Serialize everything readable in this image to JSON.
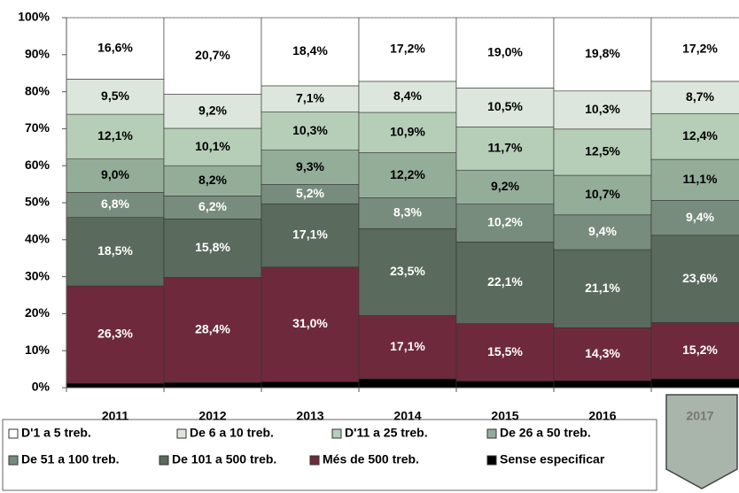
{
  "chart_data": {
    "type": "stacked_bar",
    "categories": [
      "2011",
      "2012",
      "2013",
      "2014",
      "2015",
      "2016",
      "2017"
    ],
    "series": [
      {
        "name": "Sense especificar",
        "color": "#000000",
        "values": [
          1.2,
          1.4,
          1.6,
          2.4,
          1.8,
          1.9,
          2.4
        ]
      },
      {
        "name": "Més de 500 treb.",
        "color": "#6e2a3c",
        "values": [
          26.3,
          28.4,
          31.0,
          17.1,
          15.5,
          14.3,
          15.2
        ],
        "value_labels": [
          "26,3%",
          "28,4%",
          "31,0%",
          "17,1%",
          "15,5%",
          "14,3%",
          "15,2%"
        ]
      },
      {
        "name": "De 101 a 500 treb.",
        "color": "#5a6a5d",
        "values": [
          18.5,
          15.8,
          17.1,
          23.5,
          22.1,
          21.1,
          23.6
        ],
        "value_labels": [
          "18,5%",
          "15,8%",
          "17,1%",
          "23,5%",
          "22,1%",
          "21,1%",
          "23,6%"
        ]
      },
      {
        "name": "De 51 a 100 treb.",
        "color": "#788c7d",
        "values": [
          6.8,
          6.2,
          5.2,
          8.3,
          10.2,
          9.4,
          9.4
        ],
        "value_labels": [
          "6,8%",
          "6,2%",
          "5,2%",
          "8,3%",
          "10,2%",
          "9,4%",
          "9,4%"
        ]
      },
      {
        "name": "De 26 a 50 treb.",
        "color": "#94ad99",
        "values": [
          9.0,
          8.2,
          9.3,
          12.2,
          9.2,
          10.7,
          11.1
        ],
        "value_labels": [
          "9,0%",
          "8,2%",
          "9,3%",
          "12,2%",
          "9,2%",
          "10,7%",
          "11,1%"
        ]
      },
      {
        "name": "D'11 a 25 treb.",
        "color": "#b6cdb8",
        "values": [
          12.1,
          10.1,
          10.3,
          10.9,
          11.7,
          12.5,
          12.4
        ],
        "value_labels": [
          "12,1%",
          "10,1%",
          "10,3%",
          "10,9%",
          "11,7%",
          "12,5%",
          "12,4%"
        ]
      },
      {
        "name": "De 6 a 10 treb.",
        "color": "#dce6dc",
        "values": [
          9.5,
          9.2,
          7.1,
          8.4,
          10.5,
          10.3,
          8.7
        ],
        "value_labels": [
          "9,5%",
          "9,2%",
          "7,1%",
          "8,4%",
          "10,5%",
          "10,3%",
          "8,7%"
        ]
      },
      {
        "name": "D'1 a 5 treb.",
        "color": "#ffffff",
        "values": [
          16.6,
          20.7,
          18.4,
          17.2,
          19.0,
          19.8,
          17.2
        ],
        "value_labels": [
          "16,6%",
          "20,7%",
          "18,4%",
          "17,2%",
          "19,0%",
          "19,8%",
          "17,2%"
        ]
      }
    ],
    "ylim": [
      0,
      100
    ],
    "yticks": [
      {
        "value": 0,
        "label": "0%"
      },
      {
        "value": 10,
        "label": "10%"
      },
      {
        "value": 20,
        "label": "20%"
      },
      {
        "value": 30,
        "label": "30%"
      },
      {
        "value": 40,
        "label": "40%"
      },
      {
        "value": 50,
        "label": "50%"
      },
      {
        "value": 60,
        "label": "60%"
      },
      {
        "value": 70,
        "label": "70%"
      },
      {
        "value": 80,
        "label": "80%"
      },
      {
        "value": 90,
        "label": "90%"
      },
      {
        "value": 100,
        "label": "100%"
      }
    ],
    "grid": true
  }
}
